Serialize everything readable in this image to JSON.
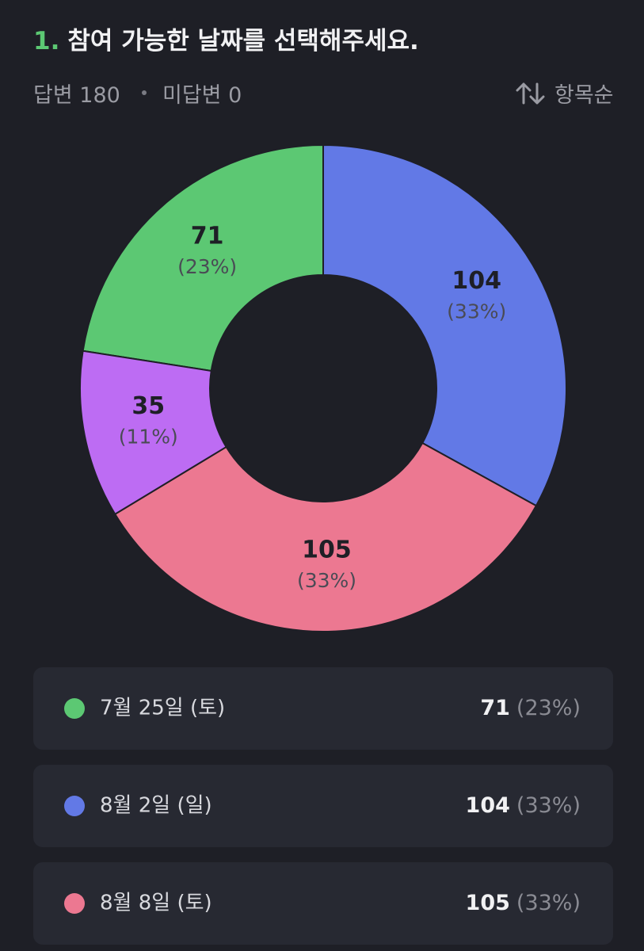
{
  "header": {
    "number": "1.",
    "title": "참여 가능한 날짜를 선택해주세요.",
    "answered": "답변 180",
    "unanswered": "미답변 0",
    "sort": "항목순"
  },
  "chart_data": {
    "type": "pie",
    "categories": [
      "7월 25일 (토)",
      "8월 2일 (일)",
      "8월 8일 (토)",
      null
    ],
    "values": [
      71,
      104,
      105,
      35
    ],
    "percents": [
      23,
      33,
      33,
      11
    ],
    "percent_labels": [
      "(23%)",
      "(33%)",
      "(33%)",
      "(11%)"
    ],
    "colors": [
      "#5cc873",
      "#6279e6",
      "#ec7891",
      "#bd6cf3"
    ]
  }
}
